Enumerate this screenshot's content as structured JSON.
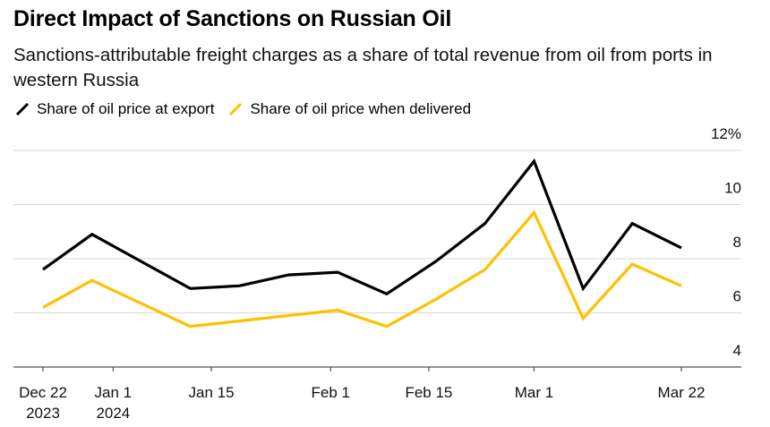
{
  "title": "Direct Impact of Sanctions on Russian Oil",
  "subtitle": "Sanctions-attributable freight charges as a share of total revenue from oil from ports in western Russia",
  "chart_data": {
    "type": "line",
    "title": "Direct Impact of Sanctions on Russian Oil",
    "subtitle": "Sanctions-attributable freight charges as a share of total revenue from oil from ports in western Russia",
    "xlabel": "",
    "ylabel": "",
    "y_unit_suffix": "%",
    "ylim": [
      4,
      12
    ],
    "y_ticks": [
      4,
      6,
      8,
      10,
      12
    ],
    "y_tick_labels": [
      "4",
      "6",
      "8",
      "10",
      "12%"
    ],
    "gridlines": true,
    "legend_position": "top-left",
    "x_start": "2023-12-22",
    "x_end": "2024-03-22",
    "x_ticks": [
      {
        "day": 0,
        "label": "Dec 22",
        "sublabel": "2023"
      },
      {
        "day": 10,
        "label": "Jan 1",
        "sublabel": "2024"
      },
      {
        "day": 24,
        "label": "Jan 15",
        "sublabel": ""
      },
      {
        "day": 41,
        "label": "Feb 1",
        "sublabel": ""
      },
      {
        "day": 55,
        "label": "Feb 15",
        "sublabel": ""
      },
      {
        "day": 70,
        "label": "Mar 1",
        "sublabel": ""
      },
      {
        "day": 91,
        "label": "Mar 22",
        "sublabel": ""
      }
    ],
    "x_days": [
      0,
      7,
      21,
      28,
      35,
      42,
      49,
      56,
      63,
      70,
      77,
      84,
      91
    ],
    "series": [
      {
        "name": "Share of oil price at export",
        "color": "#000000",
        "values": [
          7.6,
          8.9,
          6.9,
          7.0,
          7.4,
          7.5,
          6.7,
          7.9,
          9.3,
          11.6,
          6.9,
          9.3,
          8.4
        ]
      },
      {
        "name": "Share of oil price when delivered",
        "color": "#FFC000",
        "values": [
          6.2,
          7.2,
          5.5,
          5.7,
          5.9,
          6.1,
          5.5,
          6.5,
          7.6,
          9.7,
          5.8,
          7.8,
          7.0
        ]
      }
    ]
  }
}
